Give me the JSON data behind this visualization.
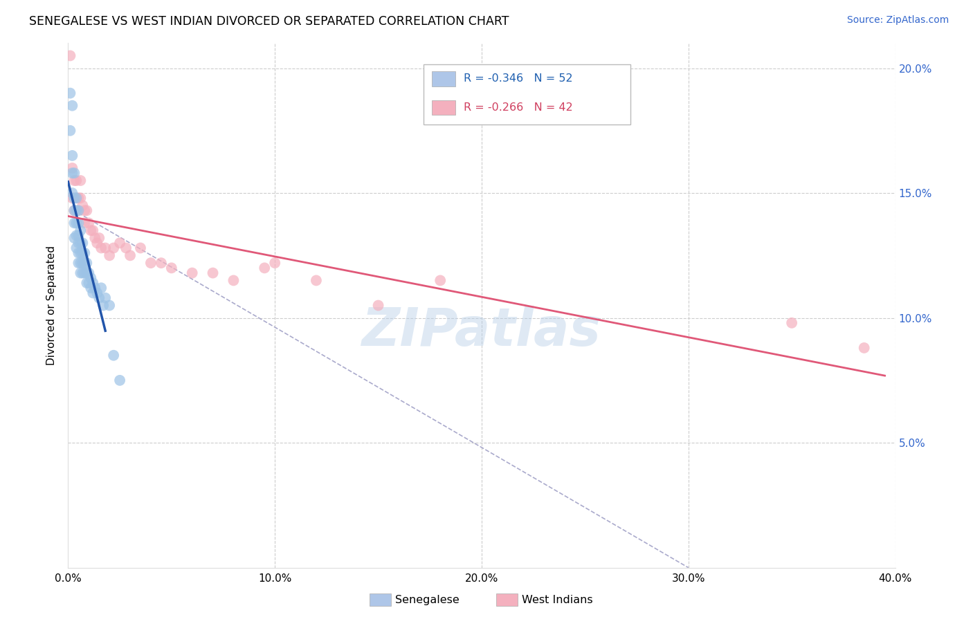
{
  "title": "SENEGALESE VS WEST INDIAN DIVORCED OR SEPARATED CORRELATION CHART",
  "source": "Source: ZipAtlas.com",
  "ylabel": "Divorced or Separated",
  "xlim": [
    0.0,
    0.4
  ],
  "ylim": [
    0.0,
    0.21
  ],
  "xticks": [
    0.0,
    0.1,
    0.2,
    0.3,
    0.4
  ],
  "xtick_labels": [
    "0.0%",
    "10.0%",
    "20.0%",
    "30.0%",
    "40.0%"
  ],
  "yticks": [
    0.0,
    0.05,
    0.1,
    0.15,
    0.2
  ],
  "ytick_labels_right": [
    "",
    "5.0%",
    "10.0%",
    "15.0%",
    "20.0%"
  ],
  "legend_entries": [
    {
      "label": "R = -0.346   N = 52",
      "color": "#aec6e8",
      "tcolor": "#2060b0"
    },
    {
      "label": "R = -0.266   N = 42",
      "color": "#f4b0be",
      "tcolor": "#d04060"
    }
  ],
  "bottom_legend": [
    {
      "label": "Senegalese",
      "color": "#aec6e8"
    },
    {
      "label": "West Indians",
      "color": "#f4b0be"
    }
  ],
  "watermark": "ZIPatlas",
  "blue_scatter_color": "#9dc3e6",
  "pink_scatter_color": "#f4b0be",
  "blue_line_color": "#2255aa",
  "pink_line_color": "#e05878",
  "ref_line_color": "#aaaacc",
  "grid_color": "#cccccc",
  "background_color": "#ffffff",
  "senegalese_x": [
    0.001,
    0.001,
    0.002,
    0.002,
    0.002,
    0.002,
    0.003,
    0.003,
    0.003,
    0.003,
    0.003,
    0.004,
    0.004,
    0.004,
    0.004,
    0.004,
    0.005,
    0.005,
    0.005,
    0.005,
    0.005,
    0.005,
    0.006,
    0.006,
    0.006,
    0.006,
    0.006,
    0.007,
    0.007,
    0.007,
    0.007,
    0.008,
    0.008,
    0.008,
    0.009,
    0.009,
    0.009,
    0.01,
    0.01,
    0.011,
    0.011,
    0.012,
    0.012,
    0.013,
    0.014,
    0.015,
    0.016,
    0.017,
    0.018,
    0.02,
    0.022,
    0.025
  ],
  "senegalese_y": [
    0.19,
    0.175,
    0.185,
    0.165,
    0.158,
    0.15,
    0.158,
    0.148,
    0.143,
    0.138,
    0.132,
    0.148,
    0.143,
    0.138,
    0.133,
    0.128,
    0.143,
    0.138,
    0.133,
    0.13,
    0.126,
    0.122,
    0.135,
    0.13,
    0.126,
    0.122,
    0.118,
    0.13,
    0.126,
    0.122,
    0.118,
    0.126,
    0.122,
    0.118,
    0.122,
    0.118,
    0.114,
    0.118,
    0.114,
    0.116,
    0.112,
    0.114,
    0.11,
    0.112,
    0.11,
    0.108,
    0.112,
    0.105,
    0.108,
    0.105,
    0.085,
    0.075
  ],
  "westindian_x": [
    0.001,
    0.002,
    0.002,
    0.003,
    0.003,
    0.004,
    0.004,
    0.005,
    0.005,
    0.006,
    0.006,
    0.007,
    0.008,
    0.008,
    0.009,
    0.01,
    0.011,
    0.012,
    0.013,
    0.014,
    0.015,
    0.016,
    0.018,
    0.02,
    0.022,
    0.025,
    0.028,
    0.03,
    0.035,
    0.04,
    0.045,
    0.05,
    0.06,
    0.07,
    0.08,
    0.095,
    0.1,
    0.12,
    0.15,
    0.18,
    0.35,
    0.385
  ],
  "westindian_y": [
    0.205,
    0.16,
    0.148,
    0.155,
    0.143,
    0.155,
    0.148,
    0.148,
    0.143,
    0.155,
    0.148,
    0.145,
    0.143,
    0.138,
    0.143,
    0.138,
    0.135,
    0.135,
    0.132,
    0.13,
    0.132,
    0.128,
    0.128,
    0.125,
    0.128,
    0.13,
    0.128,
    0.125,
    0.128,
    0.122,
    0.122,
    0.12,
    0.118,
    0.118,
    0.115,
    0.12,
    0.122,
    0.115,
    0.105,
    0.115,
    0.098,
    0.088
  ],
  "blue_line_x": [
    0.0,
    0.018
  ],
  "pink_line_x": [
    0.0,
    0.395
  ],
  "ref_line_x": [
    0.005,
    0.3
  ],
  "ref_line_y": [
    0.142,
    0.0
  ]
}
